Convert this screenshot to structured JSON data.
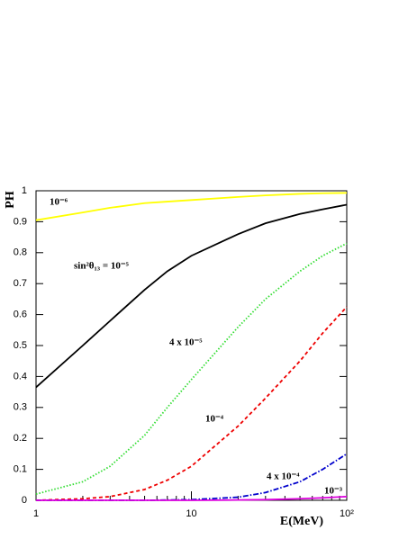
{
  "chart_data": {
    "type": "line",
    "x_scale": "log",
    "xlabel": "E(MeV)",
    "ylabel": "PH",
    "x": [
      1,
      2,
      3,
      5,
      7,
      10,
      20,
      30,
      50,
      70,
      100
    ],
    "xlim": [
      1,
      100
    ],
    "xticks": [
      1,
      10,
      {
        "value": 100,
        "label": "10²"
      }
    ],
    "ylim": [
      0,
      1
    ],
    "yticks": [
      0,
      0.1,
      0.2,
      0.3,
      0.4,
      0.5,
      0.6,
      0.7,
      0.8,
      0.9,
      1
    ],
    "series": [
      {
        "name": "10⁻⁶",
        "color": "#ffff00",
        "style": "solid",
        "values": [
          0.905,
          0.93,
          0.945,
          0.96,
          0.965,
          0.97,
          0.98,
          0.985,
          0.99,
          0.992,
          0.993
        ]
      },
      {
        "name": "sin²θ₁₃ = 10⁻⁵",
        "color": "#000000",
        "style": "solid",
        "values": [
          0.365,
          0.5,
          0.58,
          0.68,
          0.74,
          0.79,
          0.86,
          0.895,
          0.925,
          0.94,
          0.955
        ]
      },
      {
        "name": "4 x 10⁻⁵",
        "color": "#33dd33",
        "style": "dotted",
        "values": [
          0.02,
          0.06,
          0.11,
          0.21,
          0.3,
          0.39,
          0.56,
          0.65,
          0.74,
          0.79,
          0.83
        ]
      },
      {
        "name": "10⁻⁴",
        "color": "#ee0000",
        "style": "dashed",
        "values": [
          0.0,
          0.005,
          0.012,
          0.035,
          0.065,
          0.11,
          0.24,
          0.33,
          0.45,
          0.54,
          0.625
        ]
      },
      {
        "name": "4 x 10⁻⁴",
        "color": "#0000cc",
        "style": "dashdot",
        "values": [
          0.0,
          0.0,
          0.0,
          0.0,
          0.001,
          0.002,
          0.01,
          0.025,
          0.06,
          0.1,
          0.15
        ]
      },
      {
        "name": "10⁻³",
        "color": "#dd00dd",
        "style": "solid",
        "values": [
          0.0,
          0.0,
          0.0,
          0.0,
          0.0,
          0.0,
          0.001,
          0.002,
          0.005,
          0.008,
          0.012
        ]
      }
    ]
  }
}
